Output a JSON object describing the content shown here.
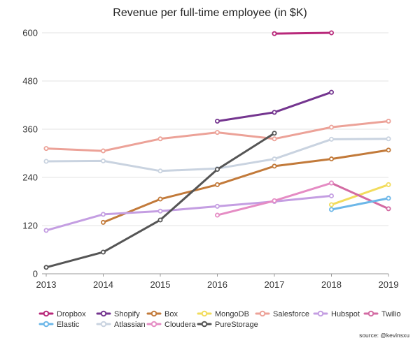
{
  "chart_data": {
    "type": "line",
    "title": "Revenue per full-time employee (in $K)",
    "xlabel": "",
    "ylabel": "",
    "categories": [
      "2013",
      "2014",
      "2015",
      "2016",
      "2017",
      "2018",
      "2019"
    ],
    "y_ticks": [
      "0",
      "120",
      "240",
      "360",
      "480",
      "600"
    ],
    "ylim": [
      0,
      620
    ],
    "grid": true,
    "legend_position": "bottom",
    "series": [
      {
        "name": "Dropbox",
        "color": "#b8287a",
        "values": [
          null,
          null,
          null,
          null,
          598,
          600,
          null
        ]
      },
      {
        "name": "Shopify",
        "color": "#74358f",
        "values": [
          null,
          null,
          null,
          380,
          402,
          452,
          null
        ]
      },
      {
        "name": "Box",
        "color": "#c27a3a",
        "values": [
          null,
          128,
          186,
          222,
          268,
          286,
          308
        ]
      },
      {
        "name": "MongoDB",
        "color": "#f2dc5d",
        "values": [
          null,
          null,
          null,
          null,
          null,
          172,
          222
        ]
      },
      {
        "name": "Salesforce",
        "color": "#eca298",
        "values": [
          312,
          306,
          336,
          352,
          336,
          365,
          380
        ]
      },
      {
        "name": "Hubspot",
        "color": "#c49ee2",
        "values": [
          108,
          148,
          156,
          168,
          180,
          194,
          null
        ]
      },
      {
        "name": "Twilio",
        "color": "#d36ba3",
        "values": [
          null,
          null,
          null,
          null,
          null,
          226,
          162
        ]
      },
      {
        "name": "Elastic",
        "color": "#6cb7e8",
        "values": [
          null,
          null,
          null,
          null,
          null,
          160,
          188
        ]
      },
      {
        "name": "Atlassian",
        "color": "#c9d3e0",
        "values": [
          280,
          281,
          256,
          262,
          286,
          335,
          336
        ]
      },
      {
        "name": "Cloudera",
        "color": "#e58cc4",
        "values": [
          null,
          null,
          null,
          146,
          182,
          226,
          null
        ]
      },
      {
        "name": "PureStorage",
        "color": "#555555",
        "values": [
          16,
          54,
          134,
          260,
          350,
          null,
          null
        ]
      }
    ],
    "source": "source: @kevinsxu"
  }
}
